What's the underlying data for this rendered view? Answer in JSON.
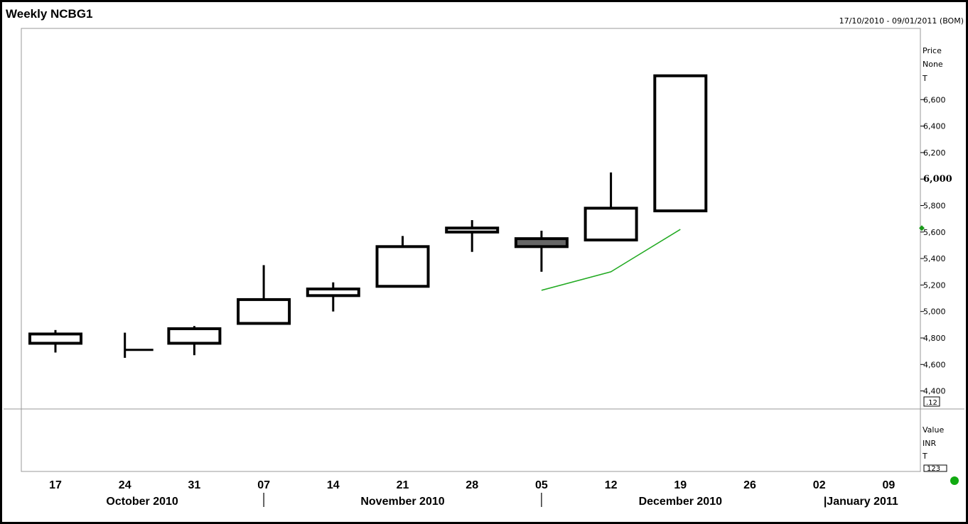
{
  "header": {
    "title": "Weekly NCBG1",
    "date_range": "17/10/2010 - 09/01/2011 (BOM)"
  },
  "price_panel": {
    "labels": [
      "Price",
      "None",
      "T"
    ],
    "box_label": ".12"
  },
  "value_panel": {
    "labels": [
      "Value",
      "INR",
      "T"
    ],
    "box_label": "123"
  },
  "colors": {
    "candle": "#000000",
    "filled_candle": "#666666",
    "moving_average": "#22aa22",
    "marker": "#1a9a1a",
    "grid_border": "#999999"
  },
  "chart_data": {
    "type": "candlestick",
    "title": "Weekly NCBG1",
    "ylim": [
      4350,
      7000
    ],
    "y_ticks": [
      {
        "value": 4400,
        "label": "4,400",
        "bold": false
      },
      {
        "value": 4600,
        "label": "4,600",
        "bold": false
      },
      {
        "value": 4800,
        "label": "4,800",
        "bold": false
      },
      {
        "value": 5000,
        "label": "5,000",
        "bold": false
      },
      {
        "value": 5200,
        "label": "5,200",
        "bold": false
      },
      {
        "value": 5400,
        "label": "5,400",
        "bold": false
      },
      {
        "value": 5600,
        "label": "5,600",
        "bold": false
      },
      {
        "value": 5800,
        "label": "5,800",
        "bold": false
      },
      {
        "value": 6000,
        "label": "6,000",
        "bold": true
      },
      {
        "value": 6200,
        "label": "6,200",
        "bold": false
      },
      {
        "value": 6400,
        "label": "6,400",
        "bold": false
      },
      {
        "value": 6600,
        "label": "6,600",
        "bold": false
      }
    ],
    "x_labels": [
      "17",
      "24",
      "31",
      "07",
      "14",
      "21",
      "28",
      "05",
      "12",
      "19",
      "26",
      "02",
      "09"
    ],
    "months": [
      {
        "label": "October 2010",
        "at": 1.25
      },
      {
        "label": "November 2010",
        "at": 5.0
      },
      {
        "label": "December 2010",
        "at": 9.0
      },
      {
        "label": "|January 2011",
        "at": 11.6
      }
    ],
    "month_separators": [
      3,
      7
    ],
    "candles": [
      {
        "week": "17",
        "open": 4760,
        "close": 4830,
        "high": 4860,
        "low": 4690,
        "filled": false
      },
      {
        "week": "24",
        "open": 4710,
        "close": 4710,
        "high": 4840,
        "low": 4650,
        "filled": false,
        "style": "close_tick"
      },
      {
        "week": "31",
        "open": 4760,
        "close": 4870,
        "high": 4890,
        "low": 4670,
        "filled": false
      },
      {
        "week": "07",
        "open": 4910,
        "close": 5090,
        "high": 5350,
        "low": 4910,
        "filled": false
      },
      {
        "week": "14",
        "open": 5120,
        "close": 5170,
        "high": 5220,
        "low": 5000,
        "filled": false
      },
      {
        "week": "21",
        "open": 5190,
        "close": 5490,
        "high": 5570,
        "low": 5190,
        "filled": false
      },
      {
        "week": "28",
        "open": 5600,
        "close": 5630,
        "high": 5690,
        "low": 5450,
        "filled": false
      },
      {
        "week": "05",
        "open": 5550,
        "close": 5490,
        "high": 5610,
        "low": 5300,
        "filled": true
      },
      {
        "week": "12",
        "open": 5540,
        "close": 5780,
        "high": 6050,
        "low": 5540,
        "filled": false
      },
      {
        "week": "19",
        "open": 5760,
        "close": 6780,
        "high": 6780,
        "low": 5760,
        "filled": false
      }
    ],
    "moving_average": {
      "points": [
        {
          "week": "05",
          "value": 5160
        },
        {
          "week": "12",
          "value": 5300
        },
        {
          "week": "19",
          "value": 5620
        }
      ]
    },
    "last_value_marker": 5630
  }
}
